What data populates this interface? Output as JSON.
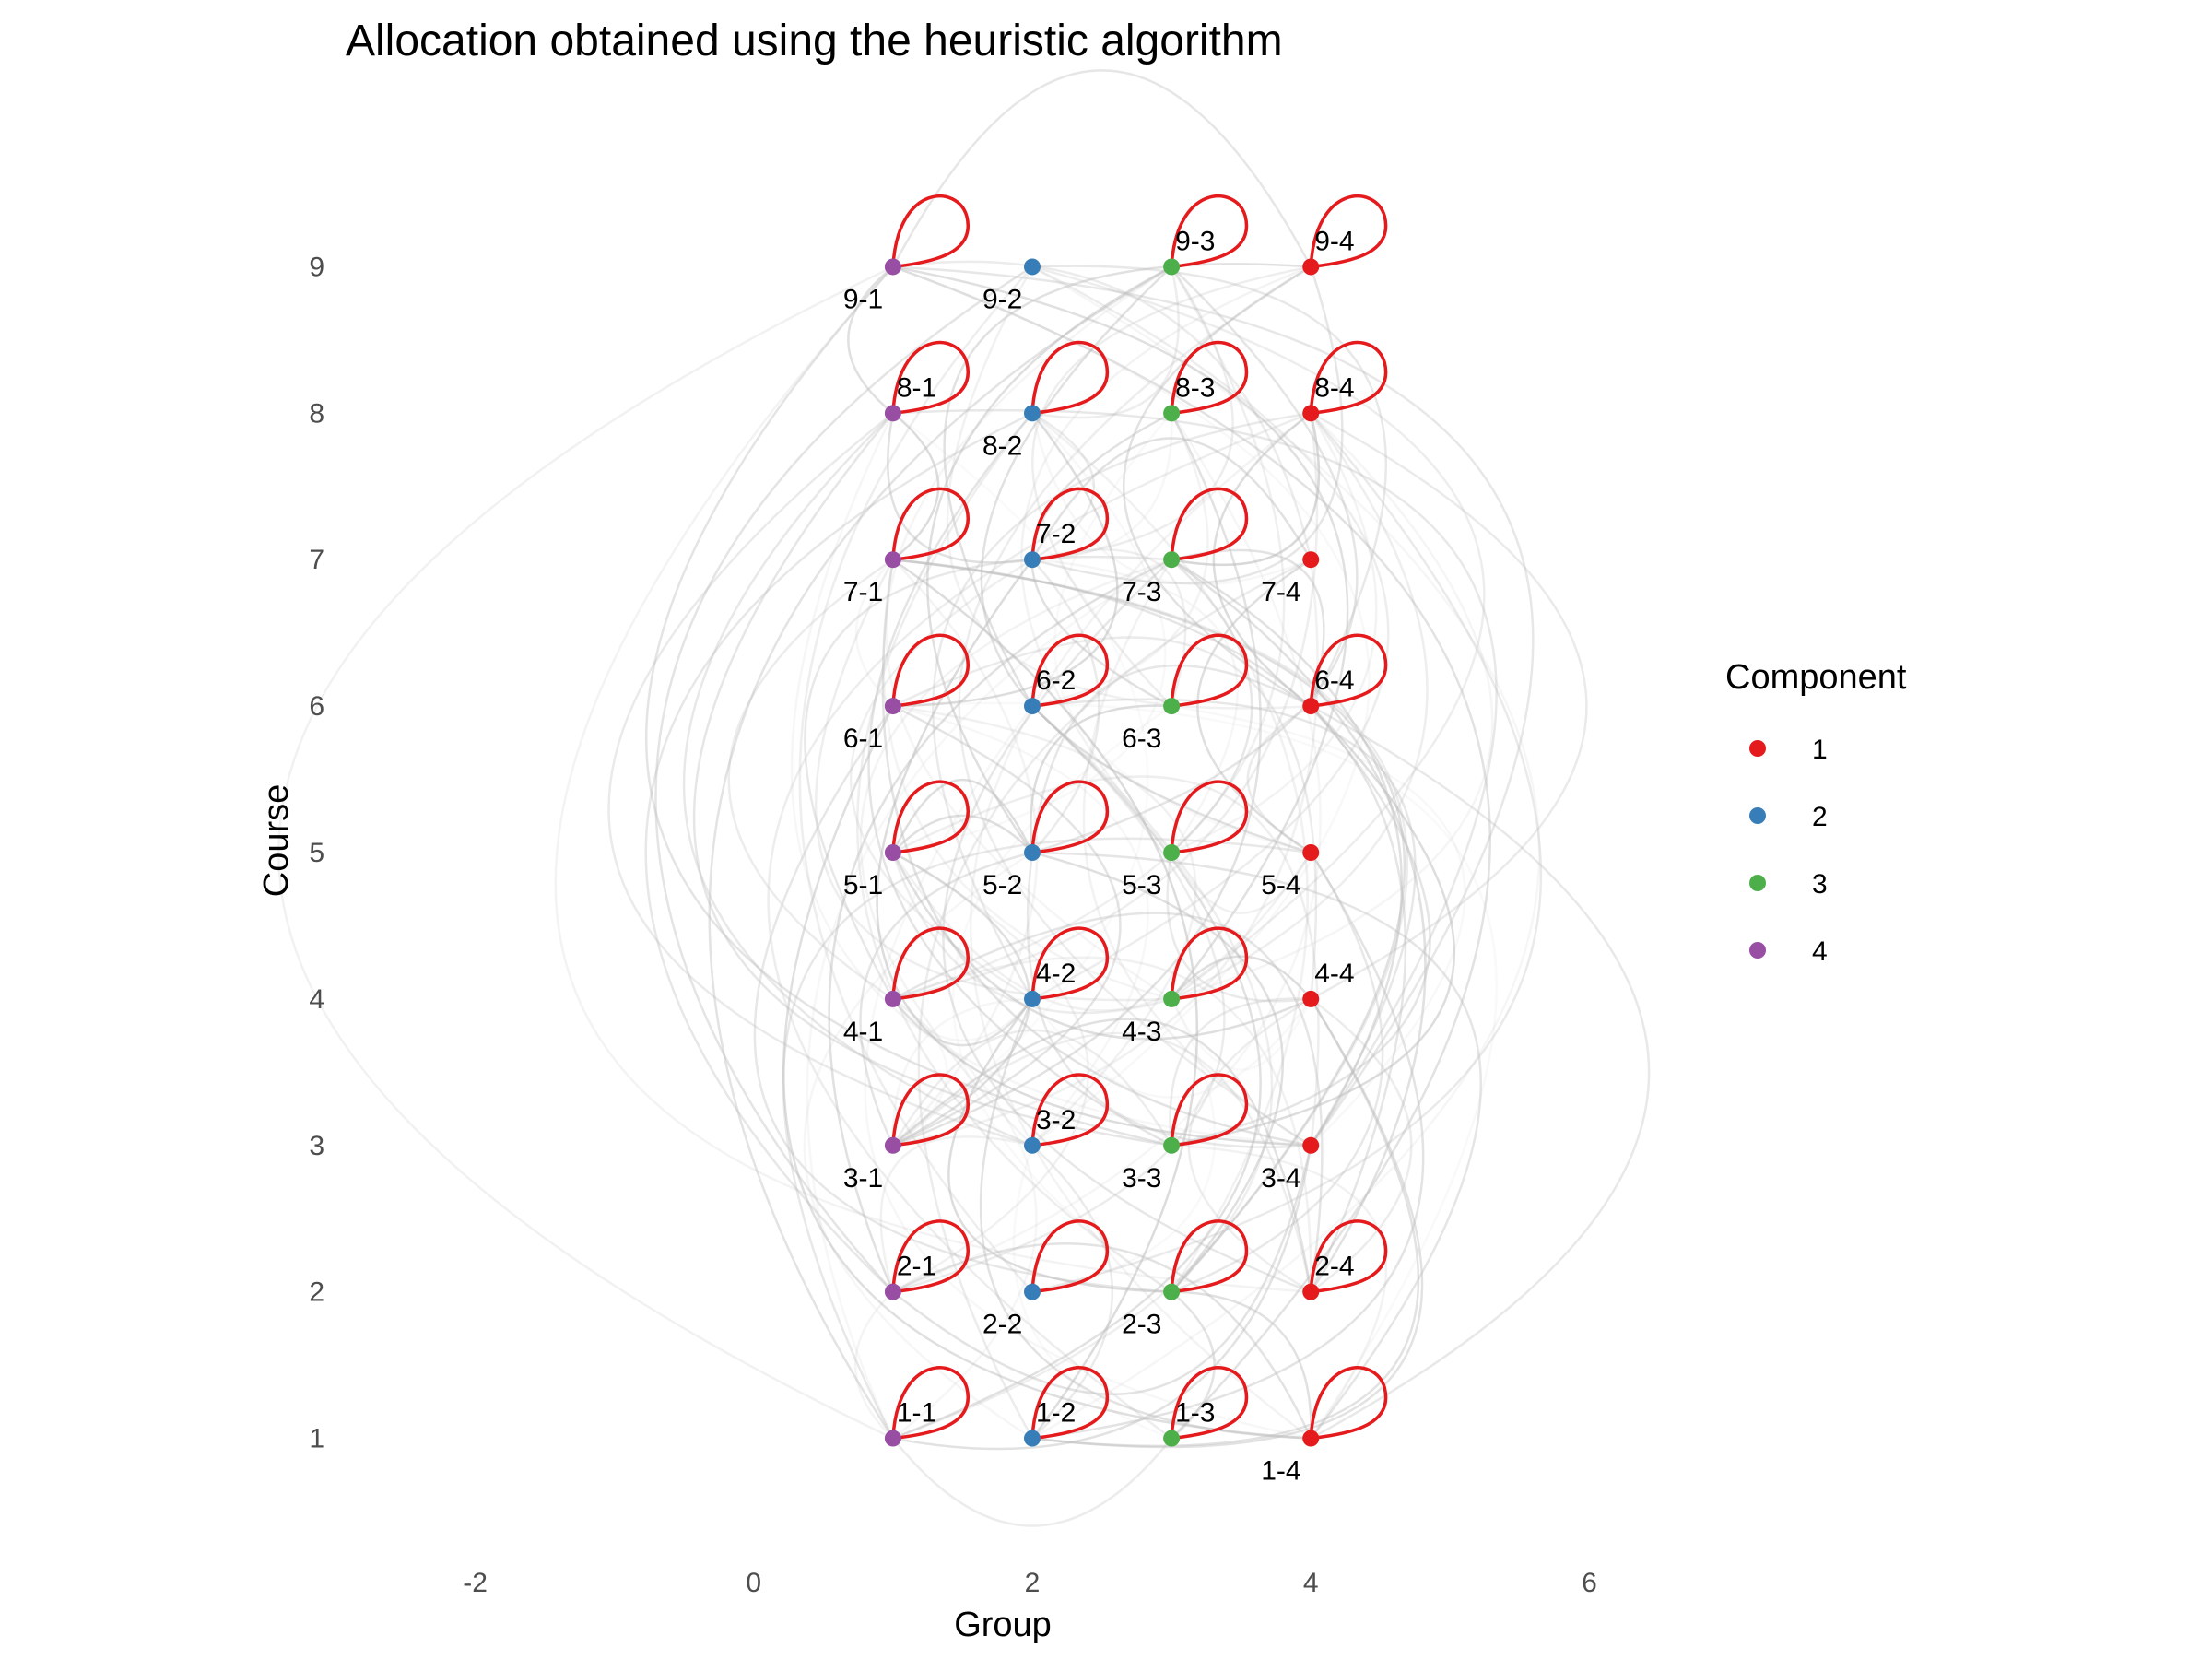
{
  "chart_data": {
    "type": "scatter",
    "title": "Allocation obtained using the heuristic algorithm",
    "xlabel": "Group",
    "ylabel": "Course",
    "xlim": [
      -2.5,
      6.5
    ],
    "ylim": [
      0.5,
      9.5
    ],
    "x_ticks": [
      "-2",
      "0",
      "2",
      "4",
      "6"
    ],
    "y_ticks": [
      "1",
      "2",
      "3",
      "4",
      "5",
      "6",
      "7",
      "8",
      "9"
    ],
    "grid": false,
    "legend": {
      "title": "Component",
      "position": "right",
      "entries": [
        "1",
        "2",
        "3",
        "4"
      ]
    },
    "colors": {
      "1": "#e41a1c",
      "2": "#377eb8",
      "3": "#4daf4a",
      "4": "#984ea3",
      "edge": "#bdbdbd",
      "self_loop": "#e41a1c"
    },
    "nodes": [
      {
        "label": "1-1",
        "x": 1,
        "y": 1,
        "component": "4",
        "loop": true
      },
      {
        "label": "1-2",
        "x": 2,
        "y": 1,
        "component": "2",
        "loop": true
      },
      {
        "label": "1-3",
        "x": 3,
        "y": 1,
        "component": "3",
        "loop": true
      },
      {
        "label": "1-4",
        "x": 4,
        "y": 1,
        "component": "1",
        "loop": true
      },
      {
        "label": "2-1",
        "x": 1,
        "y": 2,
        "component": "4",
        "loop": true
      },
      {
        "label": "2-2",
        "x": 2,
        "y": 2,
        "component": "2",
        "loop": true
      },
      {
        "label": "2-3",
        "x": 3,
        "y": 2,
        "component": "3",
        "loop": true
      },
      {
        "label": "2-4",
        "x": 4,
        "y": 2,
        "component": "1",
        "loop": true
      },
      {
        "label": "3-1",
        "x": 1,
        "y": 3,
        "component": "4",
        "loop": true
      },
      {
        "label": "3-2",
        "x": 2,
        "y": 3,
        "component": "2",
        "loop": true
      },
      {
        "label": "3-3",
        "x": 3,
        "y": 3,
        "component": "3",
        "loop": true
      },
      {
        "label": "3-4",
        "x": 4,
        "y": 3,
        "component": "1",
        "loop": false
      },
      {
        "label": "4-1",
        "x": 1,
        "y": 4,
        "component": "4",
        "loop": true
      },
      {
        "label": "4-2",
        "x": 2,
        "y": 4,
        "component": "2",
        "loop": true
      },
      {
        "label": "4-3",
        "x": 3,
        "y": 4,
        "component": "3",
        "loop": true
      },
      {
        "label": "4-4",
        "x": 4,
        "y": 4,
        "component": "1",
        "loop": false
      },
      {
        "label": "5-1",
        "x": 1,
        "y": 5,
        "component": "4",
        "loop": true
      },
      {
        "label": "5-2",
        "x": 2,
        "y": 5,
        "component": "2",
        "loop": true
      },
      {
        "label": "5-3",
        "x": 3,
        "y": 5,
        "component": "3",
        "loop": true
      },
      {
        "label": "5-4",
        "x": 4,
        "y": 5,
        "component": "1",
        "loop": false
      },
      {
        "label": "6-1",
        "x": 1,
        "y": 6,
        "component": "4",
        "loop": true
      },
      {
        "label": "6-2",
        "x": 2,
        "y": 6,
        "component": "2",
        "loop": true
      },
      {
        "label": "6-3",
        "x": 3,
        "y": 6,
        "component": "3",
        "loop": true
      },
      {
        "label": "6-4",
        "x": 4,
        "y": 6,
        "component": "1",
        "loop": true
      },
      {
        "label": "7-1",
        "x": 1,
        "y": 7,
        "component": "4",
        "loop": true
      },
      {
        "label": "7-2",
        "x": 2,
        "y": 7,
        "component": "2",
        "loop": true
      },
      {
        "label": "7-3",
        "x": 3,
        "y": 7,
        "component": "3",
        "loop": true
      },
      {
        "label": "7-4",
        "x": 4,
        "y": 7,
        "component": "1",
        "loop": false
      },
      {
        "label": "8-1",
        "x": 1,
        "y": 8,
        "component": "4",
        "loop": true
      },
      {
        "label": "8-2",
        "x": 2,
        "y": 8,
        "component": "2",
        "loop": true
      },
      {
        "label": "8-3",
        "x": 3,
        "y": 8,
        "component": "3",
        "loop": true
      },
      {
        "label": "8-4",
        "x": 4,
        "y": 8,
        "component": "1",
        "loop": true
      },
      {
        "label": "9-1",
        "x": 1,
        "y": 9,
        "component": "4",
        "loop": true
      },
      {
        "label": "9-2",
        "x": 2,
        "y": 9,
        "component": "2",
        "loop": false
      },
      {
        "label": "9-3",
        "x": 3,
        "y": 9,
        "component": "3",
        "loop": true
      },
      {
        "label": "9-4",
        "x": 4,
        "y": 9,
        "component": "1",
        "loop": true
      }
    ]
  }
}
